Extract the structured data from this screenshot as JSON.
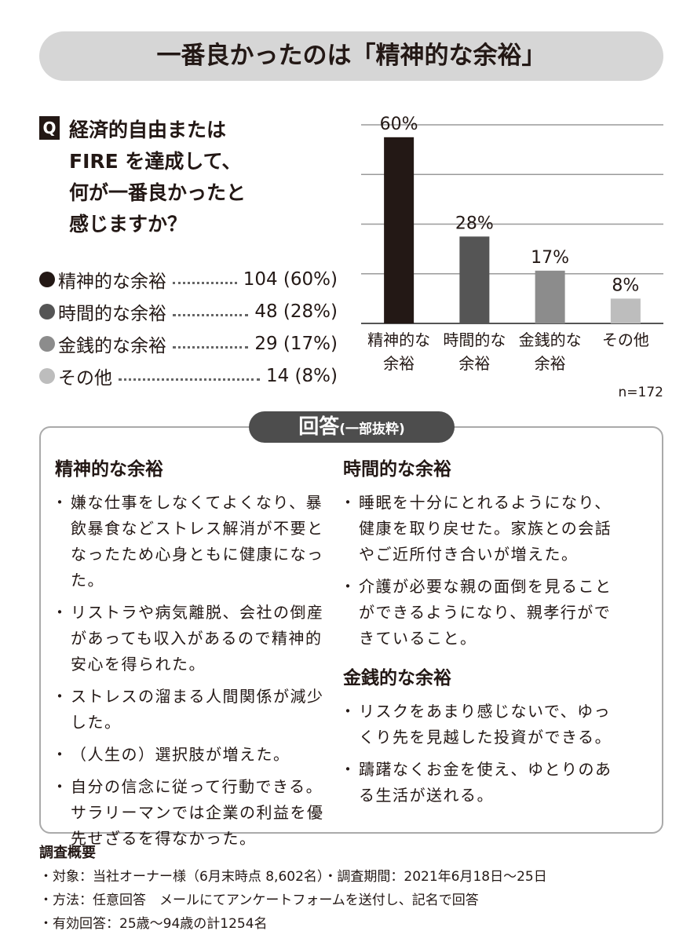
{
  "header": {
    "title": "一番良かったのは「精神的な余裕」"
  },
  "question": {
    "badge": "Q",
    "lines": [
      "経済的自由または",
      "FIRE を達成して、",
      "何が一番良かったと",
      "感じますか？"
    ]
  },
  "legend": [
    {
      "label": "精神的な余裕",
      "figure": "104 (60%)"
    },
    {
      "label": "時間的な余裕",
      "figure": "48 (28%)"
    },
    {
      "label": "金銭的な余裕",
      "figure": "29 (17%)"
    },
    {
      "label": "その他",
      "figure": "14 (8%)"
    }
  ],
  "chart_data": {
    "type": "bar",
    "categories": [
      "精神的な余裕",
      "時間的な余裕",
      "金銭的な余裕",
      "その他"
    ],
    "values": [
      60,
      28,
      17,
      8
    ],
    "value_labels": [
      "60%",
      "28%",
      "17%",
      "8%"
    ],
    "colors": [
      "#231815",
      "#555555",
      "#8c8c8c",
      "#bdbdbd"
    ],
    "ylim": [
      0,
      64
    ],
    "yticks": [
      0,
      16,
      32,
      48,
      64
    ],
    "grid": true,
    "note": "n=172"
  },
  "answers": {
    "title": "回答",
    "subtitle": "(一部抜粋)",
    "groups": [
      {
        "heading": "精神的な余裕",
        "items": [
          "嫌な仕事をしなくてよくなり、暴飲暴食などストレス解消が不要となったため心身ともに健康になった。",
          "リストラや病気離脱、会社の倒産があっても収入があるので精神的安心を得られた。",
          "ストレスの溜まる人間関係が減少した。",
          "（人生の）選択肢が増えた。",
          "自分の信念に従って行動できる。サラリーマンでは企業の利益を優先せざるを得なかった。"
        ]
      },
      {
        "heading": "時間的な余裕",
        "items": [
          "睡眠を十分にとれるようになり、健康を取り戻せた。家族との会話やご近所付き合いが増えた。",
          "介護が必要な親の面倒を見ることができるようになり、親孝行ができていること。"
        ]
      },
      {
        "heading": "金銭的な余裕",
        "items": [
          "リスクをあまり感じないで、ゆっくり先を見越した投資ができる。",
          "躊躇なくお金を使え、ゆとりのある生活が送れる。"
        ]
      }
    ]
  },
  "survey": {
    "title": "調査概要",
    "lines": [
      "対象：当社オーナー様（6月末時点 8,602名）・調査期間：2021年6月18日～25日",
      "方法：任意回答　メールにてアンケートフォームを送付し、記名で回答",
      "有効回答：25歳～94歳の計1254名"
    ]
  }
}
